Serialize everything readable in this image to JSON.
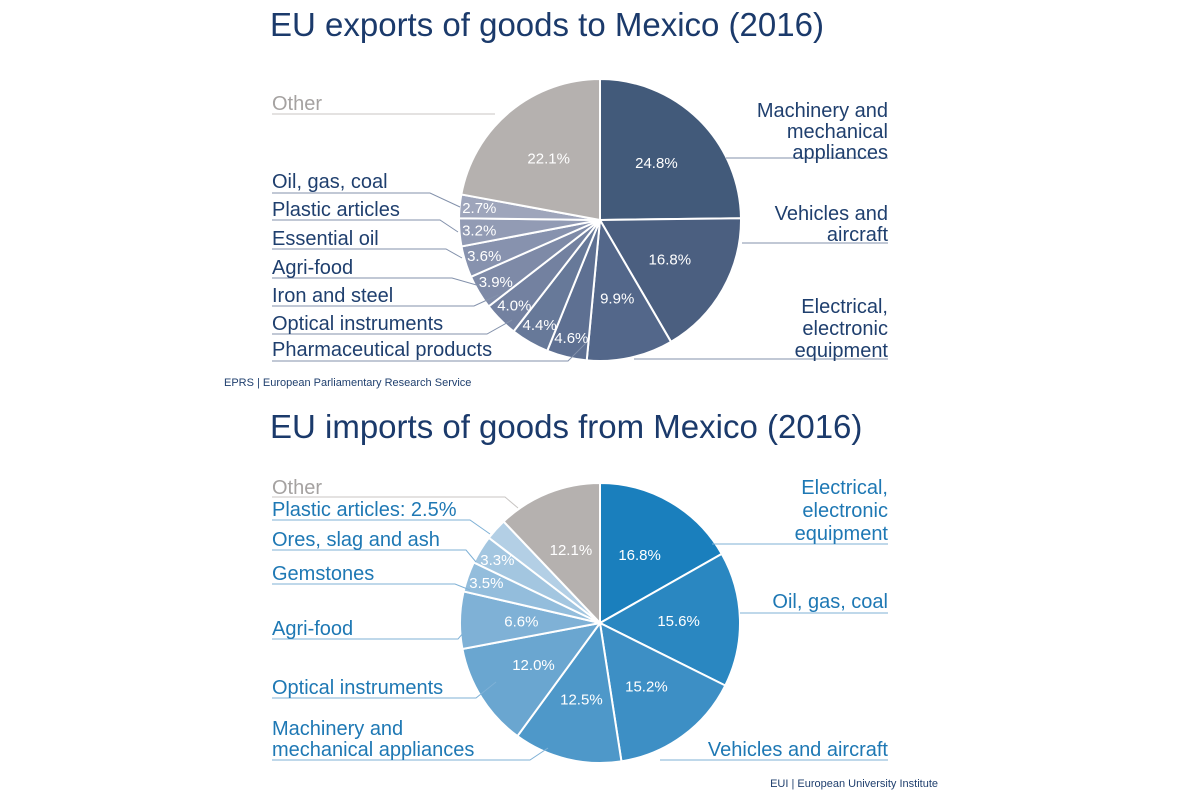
{
  "chart_data": [
    {
      "type": "pie",
      "title": "EU exports of goods to Mexico (2016)",
      "source": "EPRS | European Parliamentary Research Service",
      "slices": [
        {
          "label": [
            "Machinery and",
            "mechanical",
            "appliances"
          ],
          "value": 24.8,
          "value_label": "24.8%",
          "color": "#425a7a"
        },
        {
          "label": [
            "Vehicles and",
            "aircraft"
          ],
          "value": 16.8,
          "value_label": "16.8%",
          "color": "#4b5f80"
        },
        {
          "label": [
            "Electrical,",
            "electronic",
            "equipment"
          ],
          "value": 9.9,
          "value_label": "9.9%",
          "color": "#53678a"
        },
        {
          "label": [
            "Pharmaceutical products"
          ],
          "value": 4.6,
          "value_label": "4.6%",
          "color": "#5e7092"
        },
        {
          "label": [
            "Optical instruments"
          ],
          "value": 4.4,
          "value_label": "4.4%",
          "color": "#677999"
        },
        {
          "label": [
            "Iron and steel"
          ],
          "value": 4.0,
          "value_label": "4.0%",
          "color": "#7381a0"
        },
        {
          "label": [
            "Agri-food"
          ],
          "value": 3.9,
          "value_label": "3.9%",
          "color": "#7e8aa7"
        },
        {
          "label": [
            "Essential oil"
          ],
          "value": 3.6,
          "value_label": "3.6%",
          "color": "#8792ae"
        },
        {
          "label": [
            "Plastic articles"
          ],
          "value": 3.2,
          "value_label": "3.2%",
          "color": "#929bb4"
        },
        {
          "label": [
            "Oil, gas, coal"
          ],
          "value": 2.7,
          "value_label": "2.7%",
          "color": "#9ea5bb"
        },
        {
          "label": [
            "Other"
          ],
          "value": 22.1,
          "value_label": "22.1%",
          "color": "#b5b1af"
        }
      ]
    },
    {
      "type": "pie",
      "title": "EU imports of goods from Mexico (2016)",
      "source": "EUI | European University Institute",
      "slices": [
        {
          "label": [
            "Electrical,",
            "electronic",
            "equipment"
          ],
          "value": 16.8,
          "value_label": "16.8%",
          "color": "#1a7fbd"
        },
        {
          "label": [
            "Oil, gas, coal"
          ],
          "value": 15.6,
          "value_label": "15.6%",
          "color": "#2a87c1"
        },
        {
          "label": [
            "Vehicles and aircraft"
          ],
          "value": 15.2,
          "value_label": "15.2%",
          "color": "#3d8fc5"
        },
        {
          "label": [
            "Machinery and",
            "mechanical appliances"
          ],
          "value": 12.5,
          "value_label": "12.5%",
          "color": "#4e98c9"
        },
        {
          "label": [
            "Optical instruments"
          ],
          "value": 12.0,
          "value_label": "12.0%",
          "color": "#6aa6d0"
        },
        {
          "label": [
            "Agri-food"
          ],
          "value": 6.6,
          "value_label": "6.6%",
          "color": "#7fb1d6"
        },
        {
          "label": [
            "Gemstones"
          ],
          "value": 3.5,
          "value_label": "3.5%",
          "color": "#93bddc"
        },
        {
          "label": [
            "Ores, slag and ash"
          ],
          "value": 3.3,
          "value_label": "3.3%",
          "color": "#a3c6e0"
        },
        {
          "label": [
            "Plastic articles: 2.5%"
          ],
          "value": 2.5,
          "value_label": "",
          "color": "#b3cfe5"
        },
        {
          "label": [
            "Other"
          ],
          "value": 12.1,
          "value_label": "12.1%",
          "color": "#b5b1af"
        }
      ]
    }
  ]
}
